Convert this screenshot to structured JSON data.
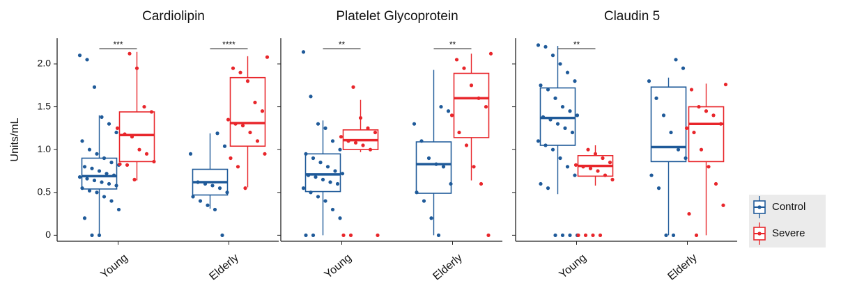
{
  "chart_data": [
    {
      "type": "box",
      "title": "Cardiolipin",
      "ylabel": "Units/mL",
      "categories": [
        "Young",
        "Elderly"
      ],
      "significance": [
        "***",
        "****"
      ],
      "ylim": [
        -0.07,
        2.3
      ],
      "yticks": [
        {
          "value": 0,
          "label": "0"
        },
        0.5,
        {
          "value": 1,
          "label": "1.0"
        },
        1.5,
        {
          "value": 2,
          "label": "2.0"
        }
      ],
      "series": [
        {
          "name": "Control",
          "color": "#1f5a99",
          "boxes": [
            {
              "min": 0,
              "q1": 0.54,
              "median": 0.69,
              "q3": 0.9,
              "max": 1.4
            },
            {
              "min": 0.31,
              "q1": 0.47,
              "median": 0.62,
              "q3": 0.77,
              "max": 1.19
            }
          ],
          "points": [
            [
              2.1,
              2.05,
              1.73,
              1.38,
              1.3,
              1.2,
              1.1,
              1.0,
              0.95,
              0.9,
              0.85,
              0.82,
              0.8,
              0.78,
              0.75,
              0.72,
              0.7,
              0.68,
              0.66,
              0.64,
              0.62,
              0.6,
              0.58,
              0.55,
              0.52,
              0.5,
              0.45,
              0.4,
              0.3,
              0.2,
              0,
              0
            ],
            [
              1.19,
              1.04,
              0.95,
              0.62,
              0.6,
              0.58,
              0.55,
              0.5,
              0.45,
              0.4,
              0.35,
              0.3,
              0
            ]
          ]
        },
        {
          "name": "Severe",
          "color": "#e8262b",
          "boxes": [
            {
              "min": 0.64,
              "q1": 0.86,
              "median": 1.17,
              "q3": 1.44,
              "max": 2.14
            },
            {
              "min": 0.56,
              "q1": 1.04,
              "median": 1.31,
              "q3": 1.84,
              "max": 2.09
            }
          ],
          "points": [
            [
              2.12,
              1.95,
              1.5,
              1.44,
              1.25,
              1.18,
              1.15,
              1.0,
              0.95,
              0.86,
              0.83,
              0.82,
              0.65
            ],
            [
              2.08,
              1.95,
              1.9,
              1.8,
              1.55,
              1.45,
              1.35,
              1.3,
              1.28,
              1.2,
              1.1,
              0.95,
              0.9,
              0.8,
              0.55
            ]
          ]
        }
      ]
    },
    {
      "type": "box",
      "title": "Platelet Glycoprotein",
      "categories": [
        "Young",
        "Elderly"
      ],
      "significance": [
        "**",
        "**"
      ],
      "ylim": [
        -0.07,
        2.3
      ],
      "yticks": [
        0,
        0.5,
        1,
        1.5,
        2
      ],
      "series": [
        {
          "name": "Control",
          "color": "#1f5a99",
          "boxes": [
            {
              "min": 0,
              "q1": 0.51,
              "median": 0.71,
              "q3": 0.95,
              "max": 1.34
            },
            {
              "min": 0,
              "q1": 0.49,
              "median": 0.83,
              "q3": 1.09,
              "max": 1.93
            }
          ],
          "points": [
            [
              2.14,
              1.62,
              1.3,
              1.25,
              1.1,
              1.0,
              0.95,
              0.9,
              0.85,
              0.8,
              0.75,
              0.72,
              0.7,
              0.68,
              0.65,
              0.62,
              0.6,
              0.55,
              0.5,
              0.45,
              0.4,
              0.3,
              0.2,
              0,
              0
            ],
            [
              1.5,
              1.45,
              1.3,
              1.1,
              0.9,
              0.83,
              0.8,
              0.6,
              0.5,
              0.4,
              0.2,
              0
            ]
          ]
        },
        {
          "name": "Severe",
          "color": "#e8262b",
          "boxes": [
            {
              "min": 0.97,
              "q1": 1.0,
              "median": 1.11,
              "q3": 1.23,
              "max": 1.58
            },
            {
              "min": 0.64,
              "q1": 1.14,
              "median": 1.6,
              "q3": 1.89,
              "max": 2.12
            }
          ],
          "points": [
            [
              1.73,
              1.37,
              1.25,
              1.2,
              1.15,
              1.1,
              1.08,
              1.05,
              1.0,
              0,
              0,
              0
            ],
            [
              2.12,
              2.05,
              1.95,
              1.75,
              1.6,
              1.5,
              1.4,
              1.2,
              1.05,
              0.8,
              0.6,
              0
            ]
          ]
        }
      ]
    },
    {
      "type": "box",
      "title": "Claudin 5",
      "categories": [
        "Young",
        "Elderly"
      ],
      "significance": [
        "**",
        null
      ],
      "ylim": [
        -0.07,
        2.3
      ],
      "yticks": [
        0,
        0.5,
        1,
        1.5,
        2
      ],
      "series": [
        {
          "name": "Control",
          "color": "#1f5a99",
          "boxes": [
            {
              "min": 0.48,
              "q1": 1.05,
              "median": 1.37,
              "q3": 1.72,
              "max": 2.21
            },
            {
              "min": 0,
              "q1": 0.86,
              "median": 1.03,
              "q3": 1.73,
              "max": 1.84
            }
          ],
          "points": [
            [
              2.22,
              2.2,
              2.1,
              2.0,
              1.9,
              1.8,
              1.75,
              1.7,
              1.6,
              1.5,
              1.45,
              1.4,
              1.38,
              1.35,
              1.3,
              1.25,
              1.2,
              1.1,
              1.05,
              1.0,
              0.9,
              0.8,
              0.7,
              0.6,
              0.55,
              0,
              0,
              0,
              0
            ],
            [
              2.05,
              1.95,
              1.8,
              1.6,
              1.4,
              1.2,
              1.0,
              0.9,
              0.7,
              0.55,
              0,
              0
            ]
          ]
        },
        {
          "name": "Severe",
          "color": "#e8262b",
          "boxes": [
            {
              "min": 0.58,
              "q1": 0.69,
              "median": 0.81,
              "q3": 0.93,
              "max": 1.05
            },
            {
              "min": 0,
              "q1": 0.86,
              "median": 1.3,
              "q3": 1.5,
              "max": 1.77
            }
          ],
          "points": [
            [
              1.0,
              0.95,
              0.9,
              0.85,
              0.82,
              0.8,
              0.78,
              0.75,
              0.7,
              0.65,
              0,
              0,
              0,
              0
            ],
            [
              1.76,
              1.7,
              1.5,
              1.45,
              1.4,
              1.3,
              1.25,
              1.2,
              1.0,
              0.8,
              0.6,
              0.35,
              0.25,
              0
            ]
          ]
        }
      ]
    }
  ]
}
